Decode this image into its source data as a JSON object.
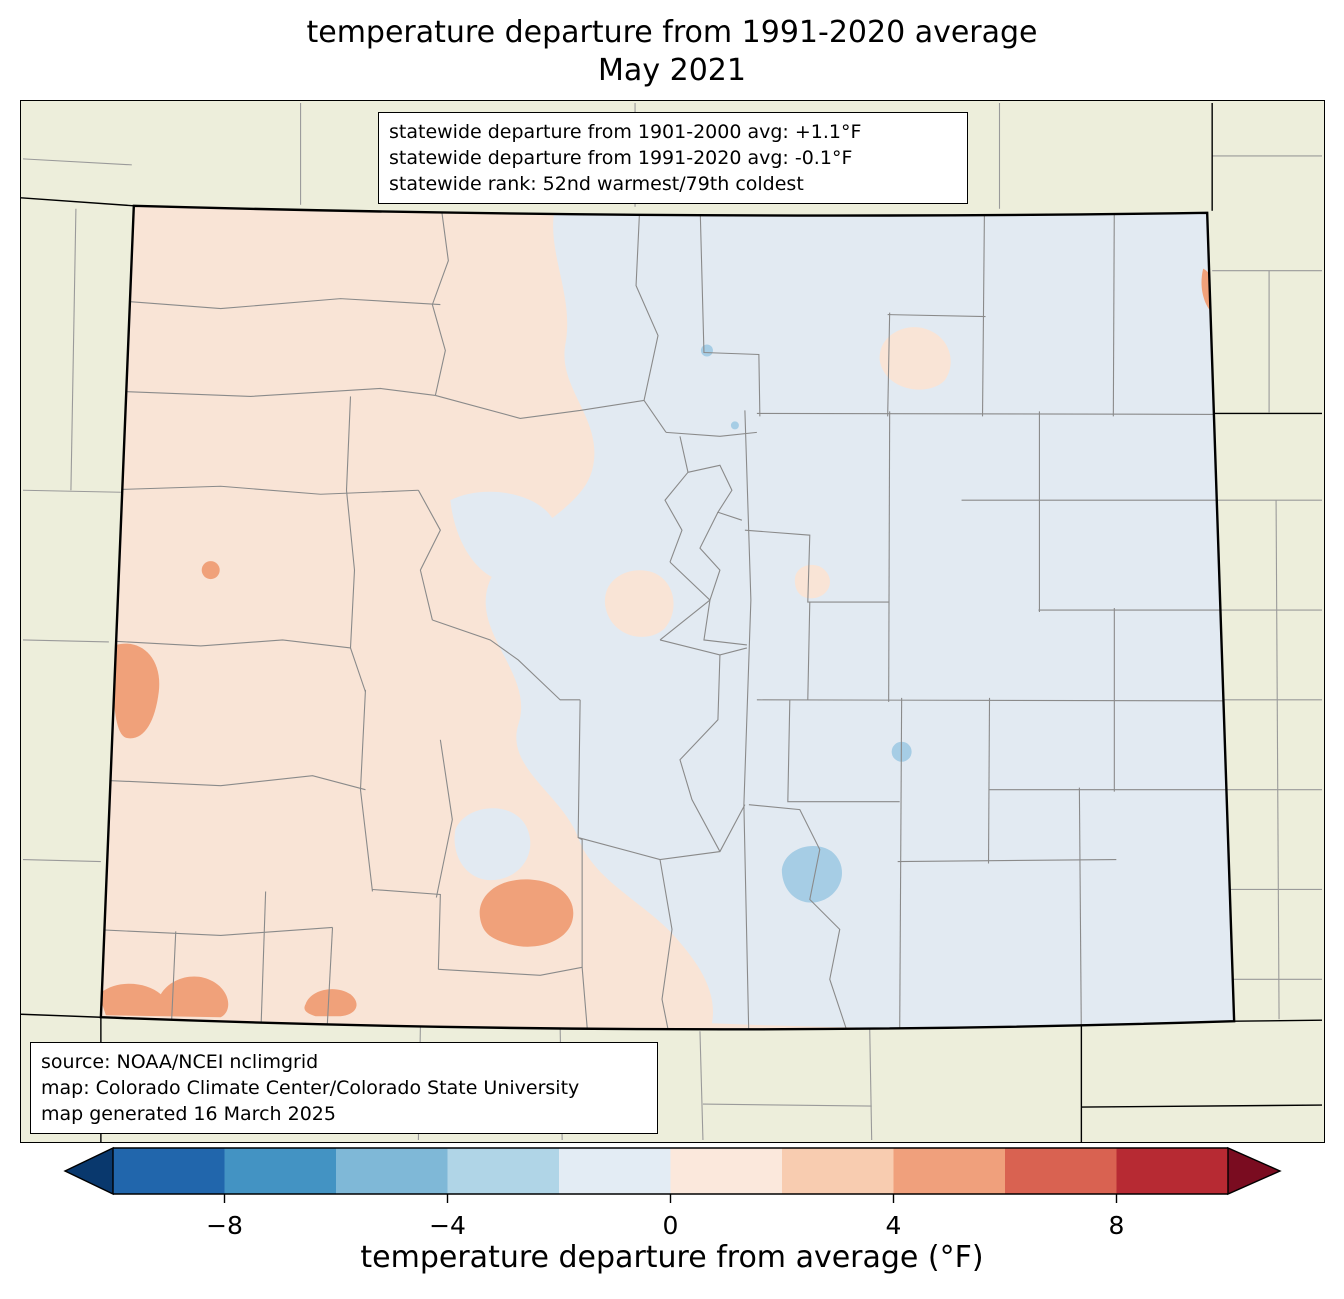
{
  "title": {
    "line1": "temperature departure from 1991-2020 average",
    "line2": "May 2021"
  },
  "overlays": {
    "stats_box": {
      "lines": [
        "statewide departure from 1901-2000 avg: +1.1°F",
        "statewide departure from 1991-2020 avg: -0.1°F",
        "statewide rank: 52nd warmest/79th coldest"
      ]
    },
    "source_box": {
      "lines": [
        "source: NOAA/NCEI nclimgrid",
        "map: Colorado Climate Center/Colorado State University",
        "map generated 16 March 2025"
      ]
    }
  },
  "map": {
    "background_color": "#edeedb",
    "west_fill": "#f9e4d6",
    "east_fill": "#e2eaf2",
    "warm_color": "#f0a17a",
    "cool_color": "#a6cde5"
  },
  "colorbar": {
    "label": "temperature departure from average (°F)",
    "ticks": [
      "−8",
      "−4",
      "0",
      "4",
      "8"
    ],
    "tick_values": [
      -8,
      -4,
      0,
      4,
      8
    ],
    "range": [
      -10,
      10
    ],
    "segment_colors": [
      "#2166ac",
      "#4393c3",
      "#7fb8d7",
      "#b0d5e7",
      "#e3ecf4",
      "#fbe8dc",
      "#f8ccb0",
      "#f0a07c",
      "#d96251",
      "#b72a33"
    ],
    "arrow_left_color": "#09386d",
    "arrow_right_color": "#7a0c20"
  }
}
